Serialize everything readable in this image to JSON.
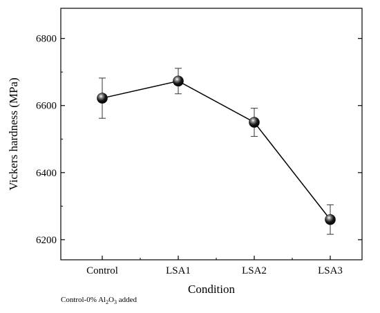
{
  "chart_data": {
    "type": "line",
    "categories": [
      "Control",
      "LSA1",
      "LSA2",
      "LSA3"
    ],
    "series": [
      {
        "values": [
          6622,
          6673,
          6550,
          6260
        ],
        "errors": [
          60,
          38,
          42,
          44
        ]
      }
    ],
    "xlabel": "Condition",
    "ylabel": "Vickers hardness (MPa)",
    "ylim": [
      6140,
      6890
    ],
    "yticks": [
      6200,
      6400,
      6600,
      6800
    ],
    "grid": false,
    "marker": "sphere",
    "colors": {
      "line": "#000000",
      "marker": "#111111",
      "axis": "#000000"
    }
  },
  "footnote": {
    "prefix": "Control-0% Al",
    "sub1": "2",
    "mid": "O",
    "sub2": "3",
    "suffix": " added"
  }
}
